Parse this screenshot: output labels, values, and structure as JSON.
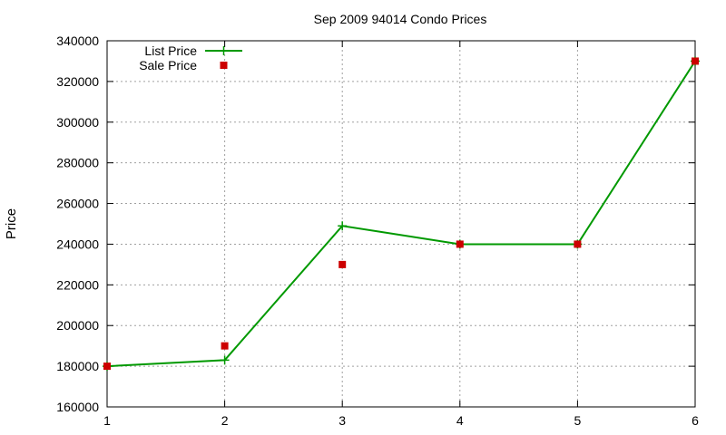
{
  "chart_data": {
    "type": "line",
    "title": "Sep 2009 94014 Condo Prices",
    "xlabel": "",
    "ylabel": "Price",
    "x": [
      1,
      2,
      3,
      4,
      5,
      6
    ],
    "xlim": [
      1,
      6
    ],
    "ylim": [
      160000,
      340000
    ],
    "x_ticks": [
      "1",
      "2",
      "3",
      "4",
      "5",
      "6"
    ],
    "y_ticks": [
      "160000",
      "180000",
      "200000",
      "220000",
      "240000",
      "260000",
      "280000",
      "300000",
      "320000",
      "340000"
    ],
    "grid": true,
    "legend_position": "top-left",
    "series": [
      {
        "name": "List Price",
        "kind": "line",
        "marker": "plus",
        "color": "#009900",
        "x": [
          1,
          2,
          3,
          4,
          5,
          6
        ],
        "values": [
          180000,
          183000,
          249000,
          240000,
          240000,
          330000
        ]
      },
      {
        "name": "Sale Price",
        "kind": "points",
        "marker": "square",
        "color": "#cc0000",
        "x": [
          1,
          2,
          3,
          4,
          5,
          6
        ],
        "values": [
          180000,
          190000,
          230000,
          240000,
          240000,
          330000
        ]
      }
    ]
  }
}
